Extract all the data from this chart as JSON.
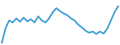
{
  "y_values": [
    0.0,
    3.5,
    5.5,
    5.0,
    6.0,
    5.2,
    6.2,
    5.3,
    5.8,
    5.0,
    6.5,
    5.5,
    5.0,
    6.0,
    7.5,
    8.5,
    7.8,
    7.2,
    6.8,
    6.0,
    5.5,
    4.5,
    3.8,
    3.0,
    2.5,
    2.8,
    2.2,
    2.8,
    2.3,
    3.5,
    5.5,
    7.5,
    9.0
  ],
  "line_color": "#3d9fd3",
  "line_width": 1.2,
  "background_color": "#ffffff"
}
